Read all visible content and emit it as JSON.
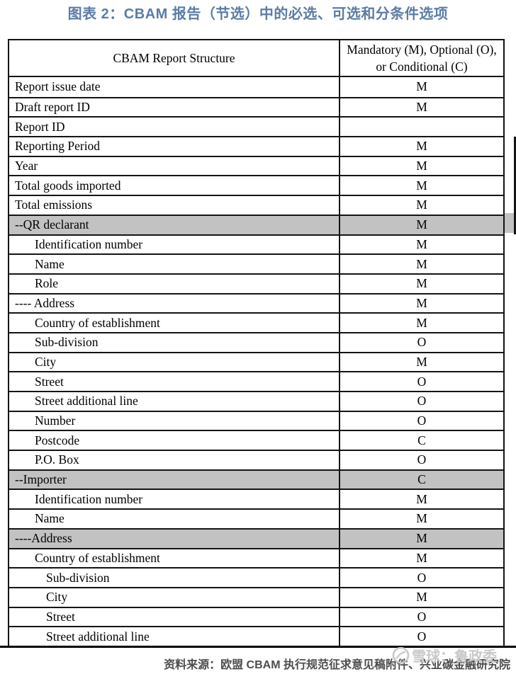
{
  "title": "图表 2：CBAM 报告（节选）中的必选、可选和分条件选项",
  "colors": {
    "title_accent": "#5b7ca6",
    "gray_row_background": "#c2c2c2",
    "table_border": "#141414",
    "source_text": "#4d4d4d",
    "watermark_text": "#c9c9c9"
  },
  "table": {
    "header": {
      "col1": "CBAM Report Structure",
      "col2": "Mandatory (M), Optional (O), or Conditional (C)"
    },
    "rows": [
      {
        "label": "Report issue date",
        "value": "M",
        "indent": 0,
        "gray": false
      },
      {
        "label": "Draft report ID",
        "value": "M",
        "indent": 0,
        "gray": false
      },
      {
        "label": "Report ID",
        "value": "",
        "indent": 0,
        "gray": false
      },
      {
        "label": "Reporting Period",
        "value": "M",
        "indent": 0,
        "gray": false
      },
      {
        "label": "Year",
        "value": "M",
        "indent": 0,
        "gray": false
      },
      {
        "label": "Total goods imported",
        "value": "M",
        "indent": 0,
        "gray": false
      },
      {
        "label": "Total emissions",
        "value": "M",
        "indent": 0,
        "gray": false
      },
      {
        "label": "--QR declarant",
        "value": "M",
        "indent": 0,
        "gray": true
      },
      {
        "label": "Identification number",
        "value": "M",
        "indent": 1,
        "gray": false
      },
      {
        "label": "Name",
        "value": "M",
        "indent": 1,
        "gray": false
      },
      {
        "label": "Role",
        "value": "M",
        "indent": 1,
        "gray": false
      },
      {
        "label": "---- Address",
        "value": "M",
        "indent": 0,
        "gray": false
      },
      {
        "label": "Country of establishment",
        "value": "M",
        "indent": 1,
        "gray": false
      },
      {
        "label": "Sub-division",
        "value": "O",
        "indent": 1,
        "gray": false
      },
      {
        "label": "City",
        "value": "M",
        "indent": 1,
        "gray": false
      },
      {
        "label": "Street",
        "value": "O",
        "indent": 1,
        "gray": false
      },
      {
        "label": "Street additional line",
        "value": "O",
        "indent": 1,
        "gray": false
      },
      {
        "label": "Number",
        "value": "O",
        "indent": 1,
        "gray": false
      },
      {
        "label": "Postcode",
        "value": "C",
        "indent": 1,
        "gray": false
      },
      {
        "label": "P.O. Box",
        "value": "O",
        "indent": 1,
        "gray": false
      },
      {
        "label": "--Importer",
        "value": "C",
        "indent": 0,
        "gray": true
      },
      {
        "label": "Identification number",
        "value": "M",
        "indent": 1,
        "gray": false
      },
      {
        "label": "Name",
        "value": "M",
        "indent": 1,
        "gray": false
      },
      {
        "label": "----Address",
        "value": "M",
        "indent": 0,
        "gray": true
      },
      {
        "label": "Country of establishment",
        "value": "M",
        "indent": 1,
        "gray": false
      },
      {
        "label": "Sub-division",
        "value": "O",
        "indent": 2,
        "gray": false
      },
      {
        "label": "City",
        "value": "M",
        "indent": 2,
        "gray": false
      },
      {
        "label": "Street",
        "value": "O",
        "indent": 2,
        "gray": false
      },
      {
        "label": "Street additional line",
        "value": "O",
        "indent": 2,
        "gray": false
      }
    ]
  },
  "footer": {
    "source": "资料来源：欧盟 CBAM 执行规范征求意见稿附件、兴业碳金融研究院"
  },
  "watermark": {
    "logo": "xueqiu-logo-icon",
    "text": "雪球：鲁政委"
  }
}
